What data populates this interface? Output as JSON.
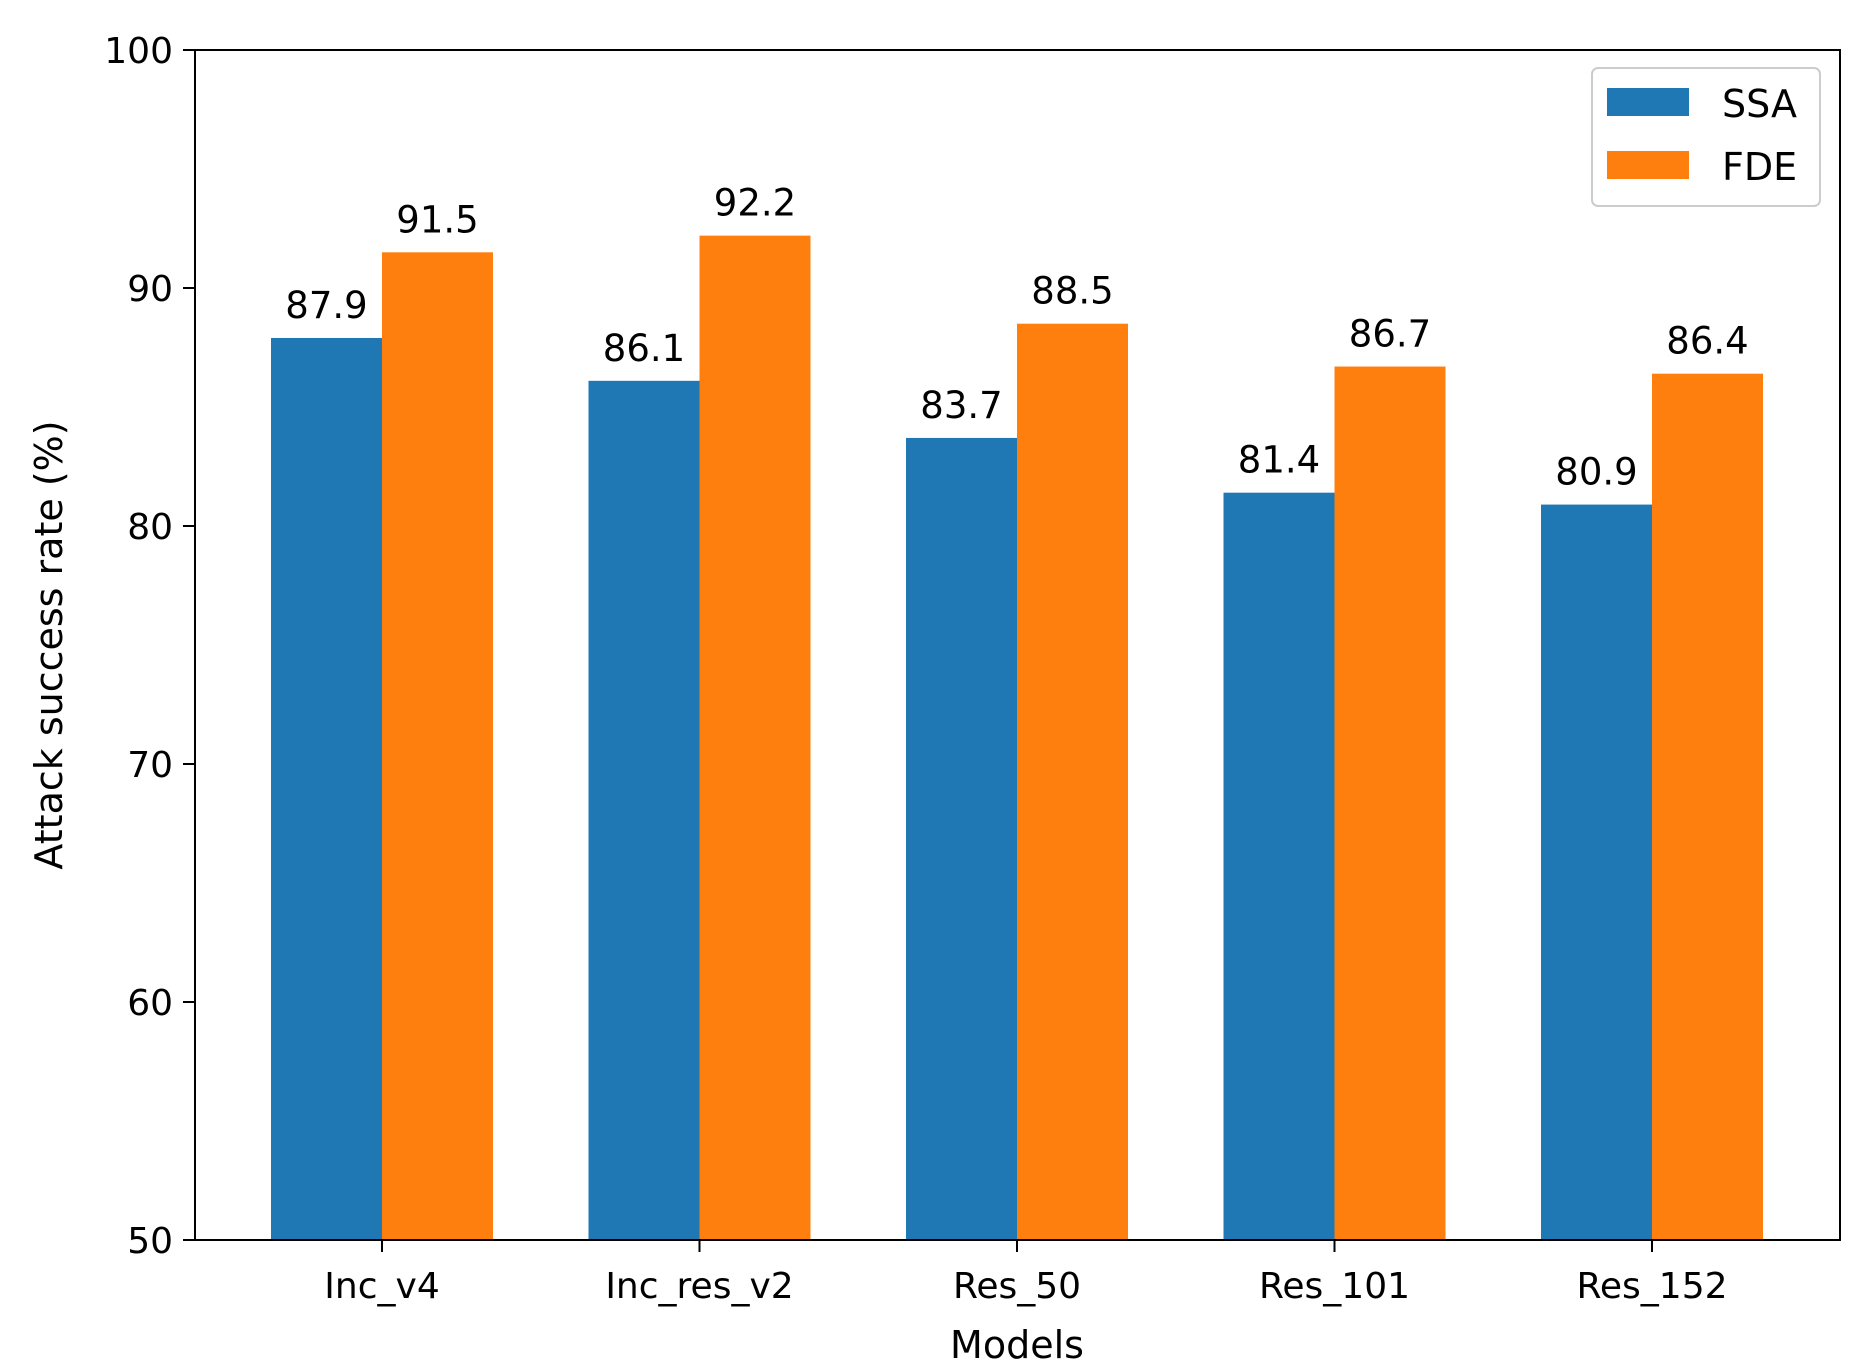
{
  "chart_data": {
    "type": "bar",
    "title": "",
    "xlabel": "Models",
    "ylabel": "Attack success rate (%)",
    "categories": [
      "Inc_v4",
      "Inc_res_v2",
      "Res_50",
      "Res_101",
      "Res_152"
    ],
    "series": [
      {
        "name": "SSA",
        "color": "#1f77b4",
        "values": [
          87.9,
          86.1,
          83.7,
          81.4,
          80.9
        ],
        "labels": [
          "87.9",
          "86.1",
          "83.7",
          "81.4",
          "80.9"
        ]
      },
      {
        "name": "FDE",
        "color": "#ff7f0e",
        "values": [
          91.5,
          92.2,
          88.5,
          86.7,
          86.4
        ],
        "labels": [
          "91.5",
          "92.2",
          "88.5",
          "86.7",
          "86.4"
        ]
      }
    ],
    "ylim": [
      50,
      100
    ],
    "yticks": [
      "50",
      "60",
      "70",
      "80",
      "90",
      "100"
    ],
    "grid": false,
    "legend_position": "top-right"
  }
}
